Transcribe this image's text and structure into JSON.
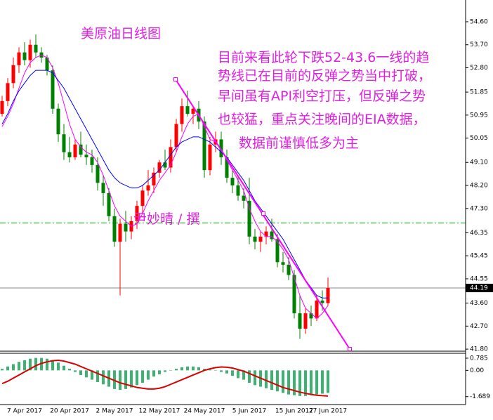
{
  "chart_data": [
    {
      "type": "candlestick",
      "title": "美原油日线图",
      "annotation": [
        "目前来看此轮下跌52-43.6一线的趋",
        "势线已在目前的反弹之势当中打破，",
        "早间虽有API利空打压，但反弹之势",
        "也较猛，重点关注晚间的EIA数据，",
        "数据前谨慎低多为主"
      ],
      "author": "尹妙晴 / 撰",
      "categories": [
        null,
        null,
        null,
        null,
        "7 Apr 2017",
        null,
        null,
        null,
        null,
        null,
        null,
        null,
        "20 Apr 2017",
        null,
        null,
        null,
        null,
        null,
        null,
        null,
        "2 May 2017",
        null,
        null,
        null,
        null,
        null,
        null,
        null,
        "12 May 2017",
        null,
        null,
        null,
        null,
        null,
        null,
        null,
        "24 May 2017",
        null,
        null,
        null,
        null,
        null,
        null,
        null,
        "5 Jun 2017",
        null,
        null,
        null,
        null,
        null,
        null,
        null,
        "15 Jun 2017",
        null,
        null,
        null,
        null,
        null,
        "27 Jun 2017"
      ],
      "open": [
        51.0,
        51.5,
        52.2,
        52.9,
        53.4,
        53.1,
        53.7,
        53.4,
        53.2,
        52.7,
        51.2,
        50.2,
        49.5,
        49.3,
        49.8,
        49.4,
        49.3,
        49.0,
        48.3,
        47.9,
        47.0,
        46.0,
        46.7,
        46.4,
        46.8,
        47.4,
        48.0,
        48.2,
        48.7,
        49.1,
        48.9,
        49.7,
        50.6,
        51.3,
        51.0,
        51.2,
        50.7,
        48.8,
        49.8,
        50.0,
        49.3,
        48.5,
        48.2,
        47.8,
        47.6,
        46.2,
        46.0,
        46.2,
        46.4,
        46.1,
        45.2,
        45.1,
        44.7,
        43.2,
        42.6,
        43.2,
        43.0,
        43.7,
        43.6
      ],
      "high": [
        51.7,
        52.4,
        53.2,
        53.6,
        53.8,
        53.9,
        54.1,
        53.6,
        53.3,
        52.9,
        51.4,
        50.6,
        50.1,
        50.0,
        50.3,
        49.8,
        49.6,
        49.3,
        48.6,
        48.1,
        47.3,
        46.9,
        47.2,
        47.0,
        47.6,
        48.2,
        48.8,
        48.9,
        49.2,
        49.6,
        50.0,
        50.8,
        51.6,
        51.9,
        51.3,
        51.5,
        50.9,
        50.1,
        50.3,
        50.3,
        49.6,
        48.8,
        48.6,
        48.1,
        48.5,
        46.5,
        46.4,
        46.6,
        46.9,
        46.3,
        45.6,
        45.4,
        44.9,
        43.9,
        43.4,
        43.5,
        43.9,
        44.1,
        44.6
      ],
      "low": [
        50.9,
        51.3,
        52.0,
        52.6,
        52.9,
        52.8,
        53.2,
        53.0,
        52.5,
        51.0,
        49.9,
        49.2,
        49.1,
        49.2,
        49.3,
        49.0,
        48.7,
        48.0,
        47.4,
        46.8,
        45.8,
        43.9,
        46.0,
        46.1,
        46.5,
        47.1,
        47.8,
        47.9,
        48.5,
        48.8,
        48.7,
        49.5,
        50.3,
        50.9,
        50.6,
        50.4,
        48.5,
        48.6,
        49.5,
        49.0,
        48.3,
        47.9,
        47.6,
        47.3,
        45.9,
        45.7,
        45.6,
        45.9,
        46.0,
        45.0,
        44.8,
        44.5,
        43.0,
        42.2,
        42.4,
        42.7,
        42.9,
        43.3,
        43.5
      ],
      "close": [
        51.5,
        52.2,
        52.9,
        53.4,
        53.1,
        53.7,
        53.4,
        53.2,
        52.7,
        51.2,
        50.2,
        49.5,
        49.3,
        49.8,
        49.4,
        49.3,
        49.0,
        48.3,
        47.9,
        47.0,
        46.0,
        46.7,
        46.4,
        46.8,
        47.4,
        48.0,
        48.2,
        48.7,
        49.1,
        48.9,
        49.7,
        50.6,
        51.3,
        51.0,
        51.2,
        50.7,
        48.8,
        49.8,
        50.0,
        49.3,
        48.5,
        48.2,
        47.8,
        47.6,
        46.2,
        46.0,
        46.2,
        46.4,
        46.1,
        45.2,
        45.1,
        44.7,
        43.2,
        42.6,
        43.2,
        43.0,
        43.7,
        43.6,
        44.19
      ],
      "up_color": "#ff0000",
      "down_color": "#008000",
      "lines": [
        {
          "color": "#ff00ff",
          "values": [
            50.5,
            50.9,
            51.4,
            52.0,
            52.6,
            53.0,
            53.2,
            53.3,
            53.2,
            52.8,
            52.2,
            51.4,
            50.6,
            50.0,
            49.7,
            49.5,
            49.4,
            49.1,
            48.6,
            48.0,
            47.4,
            47.0,
            46.8,
            46.6,
            46.7,
            47.1,
            47.6,
            48.0,
            48.4,
            48.7,
            49.0,
            49.5,
            50.1,
            50.6,
            50.9,
            51.0,
            50.5,
            50.0,
            49.9,
            49.6,
            49.2,
            48.8,
            48.4,
            48.0,
            47.3,
            46.8,
            46.4,
            46.2,
            46.2,
            46.0,
            45.7,
            45.3,
            44.6,
            43.9,
            43.4,
            43.2,
            43.0,
            43.2,
            43.5
          ]
        },
        {
          "color": "#0000ff",
          "values": [
            50.6,
            51.0,
            51.5,
            51.9,
            52.2,
            52.5,
            52.7,
            52.7,
            52.7,
            52.6,
            52.3,
            52.0,
            51.6,
            51.2,
            50.8,
            50.4,
            50.0,
            49.6,
            49.2,
            48.8,
            48.5,
            48.3,
            48.2,
            48.1,
            48.1,
            48.2,
            48.4,
            48.6,
            48.8,
            49.1,
            49.4,
            49.7,
            49.9,
            50.0,
            50.1,
            50.1,
            50.0,
            49.9,
            49.7,
            49.5,
            49.3,
            49.0,
            48.7,
            48.4,
            48.0,
            47.6,
            47.3,
            47.0,
            46.7,
            46.4,
            46.1,
            45.7,
            45.3,
            44.9,
            44.5,
            44.2,
            43.9,
            43.8,
            43.8
          ]
        }
      ],
      "level_line": {
        "value": 46.73,
        "color": "#00b000"
      },
      "last_price": 44.19,
      "ylim": [
        41.72,
        55.45
      ],
      "yticks": [
        {
          "value": 54.6,
          "label": "54.60"
        },
        {
          "value": 53.7,
          "label": "53.70"
        },
        {
          "value": 52.8,
          "label": "52.80"
        },
        51.85,
        {
          "value": 50.95,
          "label": "50.95"
        },
        {
          "value": 50.05,
          "label": "50.05"
        },
        {
          "value": 49.1,
          "label": "49.10"
        },
        {
          "value": 48.2,
          "label": "48.20"
        },
        {
          "value": 47.3,
          "label": "47.30"
        },
        46.35,
        45.45,
        44.55,
        {
          "value": 43.6,
          "label": "43.60"
        },
        {
          "value": 42.7,
          "label": "42.70"
        },
        {
          "value": 41.8,
          "label": "41.80"
        }
      ]
    },
    {
      "type": "macd",
      "series": [
        {
          "kind": "bar",
          "color": "#3cb371",
          "values": [
            0.1,
            0.25,
            0.4,
            0.55,
            0.65,
            0.75,
            0.8,
            0.8,
            0.75,
            0.65,
            0.5,
            0.3,
            0.1,
            -0.1,
            -0.3,
            -0.45,
            -0.6,
            -0.75,
            -0.9,
            -1.05,
            -1.2,
            -1.25,
            -1.2,
            -1.1,
            -0.95,
            -0.8,
            -0.6,
            -0.4,
            -0.25,
            -0.1,
            0.0,
            0.1,
            0.2,
            0.25,
            0.25,
            0.2,
            0.1,
            0.05,
            0.0,
            -0.1,
            -0.2,
            -0.35,
            -0.5,
            -0.6,
            -0.8,
            -0.95,
            -1.05,
            -1.15,
            -1.25,
            -1.35,
            -1.45,
            -1.55,
            -1.6,
            -1.65,
            -1.65,
            -1.6,
            -1.55,
            -1.5,
            -1.45
          ]
        },
        {
          "kind": "line",
          "color": "#dd0000",
          "values": [
            -0.85,
            -0.7,
            -0.5,
            -0.3,
            -0.1,
            0.1,
            0.3,
            0.45,
            0.55,
            0.62,
            0.65,
            0.6,
            0.5,
            0.4,
            0.25,
            0.1,
            -0.05,
            -0.2,
            -0.35,
            -0.5,
            -0.65,
            -0.8,
            -0.9,
            -1.0,
            -1.1,
            -1.15,
            -1.2,
            -1.2,
            -1.15,
            -1.05,
            -0.9,
            -0.75,
            -0.6,
            -0.45,
            -0.3,
            -0.15,
            0.0,
            0.1,
            0.18,
            0.22,
            0.2,
            0.15,
            0.05,
            -0.05,
            -0.2,
            -0.35,
            -0.5,
            -0.65,
            -0.8,
            -0.95,
            -1.1,
            -1.2,
            -1.3,
            -1.4,
            -1.48,
            -1.55,
            -1.6,
            -1.63,
            -1.65
          ]
        }
      ],
      "ylim": [
        -2.2,
        1.1
      ],
      "yticks": [
        0.785,
        {
          "value": 0,
          "label": "0.00"
        },
        -1.689
      ]
    }
  ]
}
